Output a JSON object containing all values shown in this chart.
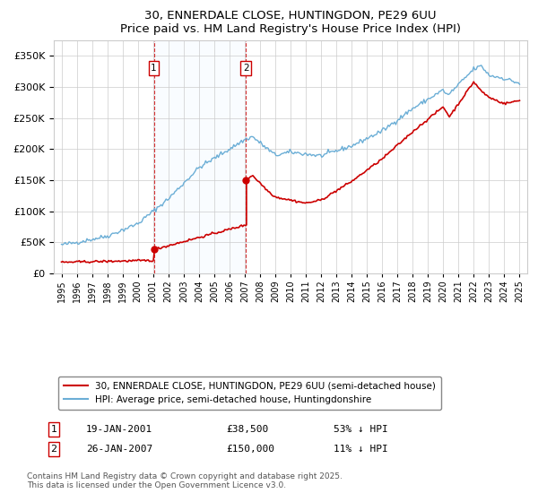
{
  "title": "30, ENNERDALE CLOSE, HUNTINGDON, PE29 6UU",
  "subtitle": "Price paid vs. HM Land Registry's House Price Index (HPI)",
  "legend_line1": "30, ENNERDALE CLOSE, HUNTINGDON, PE29 6UU (semi-detached house)",
  "legend_line2": "HPI: Average price, semi-detached house, Huntingdonshire",
  "footer": "Contains HM Land Registry data © Crown copyright and database right 2025.\nThis data is licensed under the Open Government Licence v3.0.",
  "purchase1_date": "19-JAN-2001",
  "purchase1_price": "£38,500",
  "purchase1_hpi": "53% ↓ HPI",
  "purchase2_date": "26-JAN-2007",
  "purchase2_price": "£150,000",
  "purchase2_hpi": "11% ↓ HPI",
  "hpi_color": "#6baed6",
  "price_color": "#cc0000",
  "shade_color": "#ddeeff",
  "vline_color": "#cc0000",
  "marker_color": "#cc0000",
  "ylim_max": 375000,
  "ylim_min": 0,
  "year_start": 1995,
  "year_end": 2025,
  "purchase1_t": 2001.05,
  "purchase1_p": 38500,
  "purchase2_t": 2007.08,
  "purchase2_p": 150000
}
